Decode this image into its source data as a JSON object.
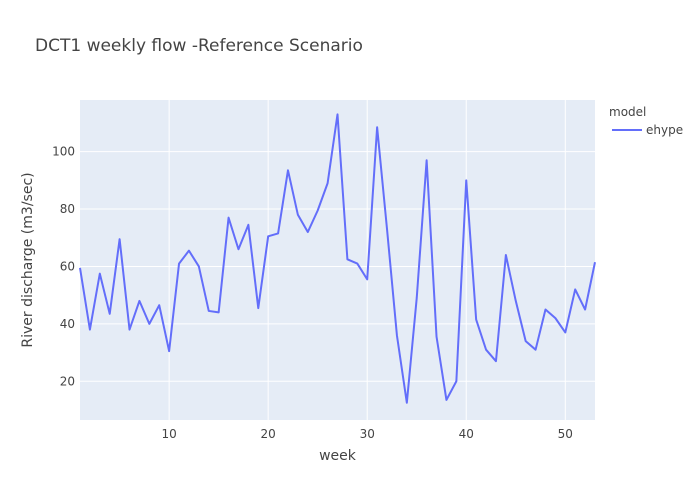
{
  "chart_data": {
    "type": "line",
    "title": "DCT1 weekly flow -Reference Scenario",
    "xlabel": "week",
    "ylabel": "River discharge (m3/sec)",
    "xlim": [
      1,
      53
    ],
    "ylim": [
      6.5,
      118
    ],
    "x_ticks": [
      10,
      20,
      30,
      40,
      50
    ],
    "y_ticks": [
      20,
      40,
      60,
      80,
      100
    ],
    "grid": true,
    "legend": {
      "title": "model",
      "placement": "top-right outside plot"
    },
    "series": [
      {
        "name": "ehype",
        "color": "#636efa",
        "x": [
          1,
          2,
          3,
          4,
          5,
          6,
          7,
          8,
          9,
          10,
          11,
          12,
          13,
          14,
          15,
          16,
          17,
          18,
          19,
          20,
          21,
          22,
          23,
          24,
          25,
          26,
          27,
          28,
          29,
          30,
          31,
          32,
          33,
          34,
          35,
          36,
          37,
          38,
          39,
          40,
          41,
          42,
          43,
          44,
          45,
          46,
          47,
          48,
          49,
          50,
          51,
          52,
          53
        ],
        "values": [
          59.5,
          38,
          57.5,
          43.5,
          69.5,
          38,
          48,
          40,
          46.5,
          30.5,
          61,
          65.5,
          60,
          44.5,
          44,
          77,
          66,
          74.5,
          45.5,
          70.5,
          71.5,
          93.5,
          78,
          72,
          79.5,
          89,
          113,
          62.5,
          61,
          55.5,
          108.5,
          73,
          36,
          12.5,
          49,
          97,
          35.5,
          13.5,
          20,
          90,
          41.5,
          31,
          27,
          64,
          48,
          34,
          31,
          45,
          42,
          37,
          52,
          45,
          61.5
        ]
      }
    ]
  }
}
